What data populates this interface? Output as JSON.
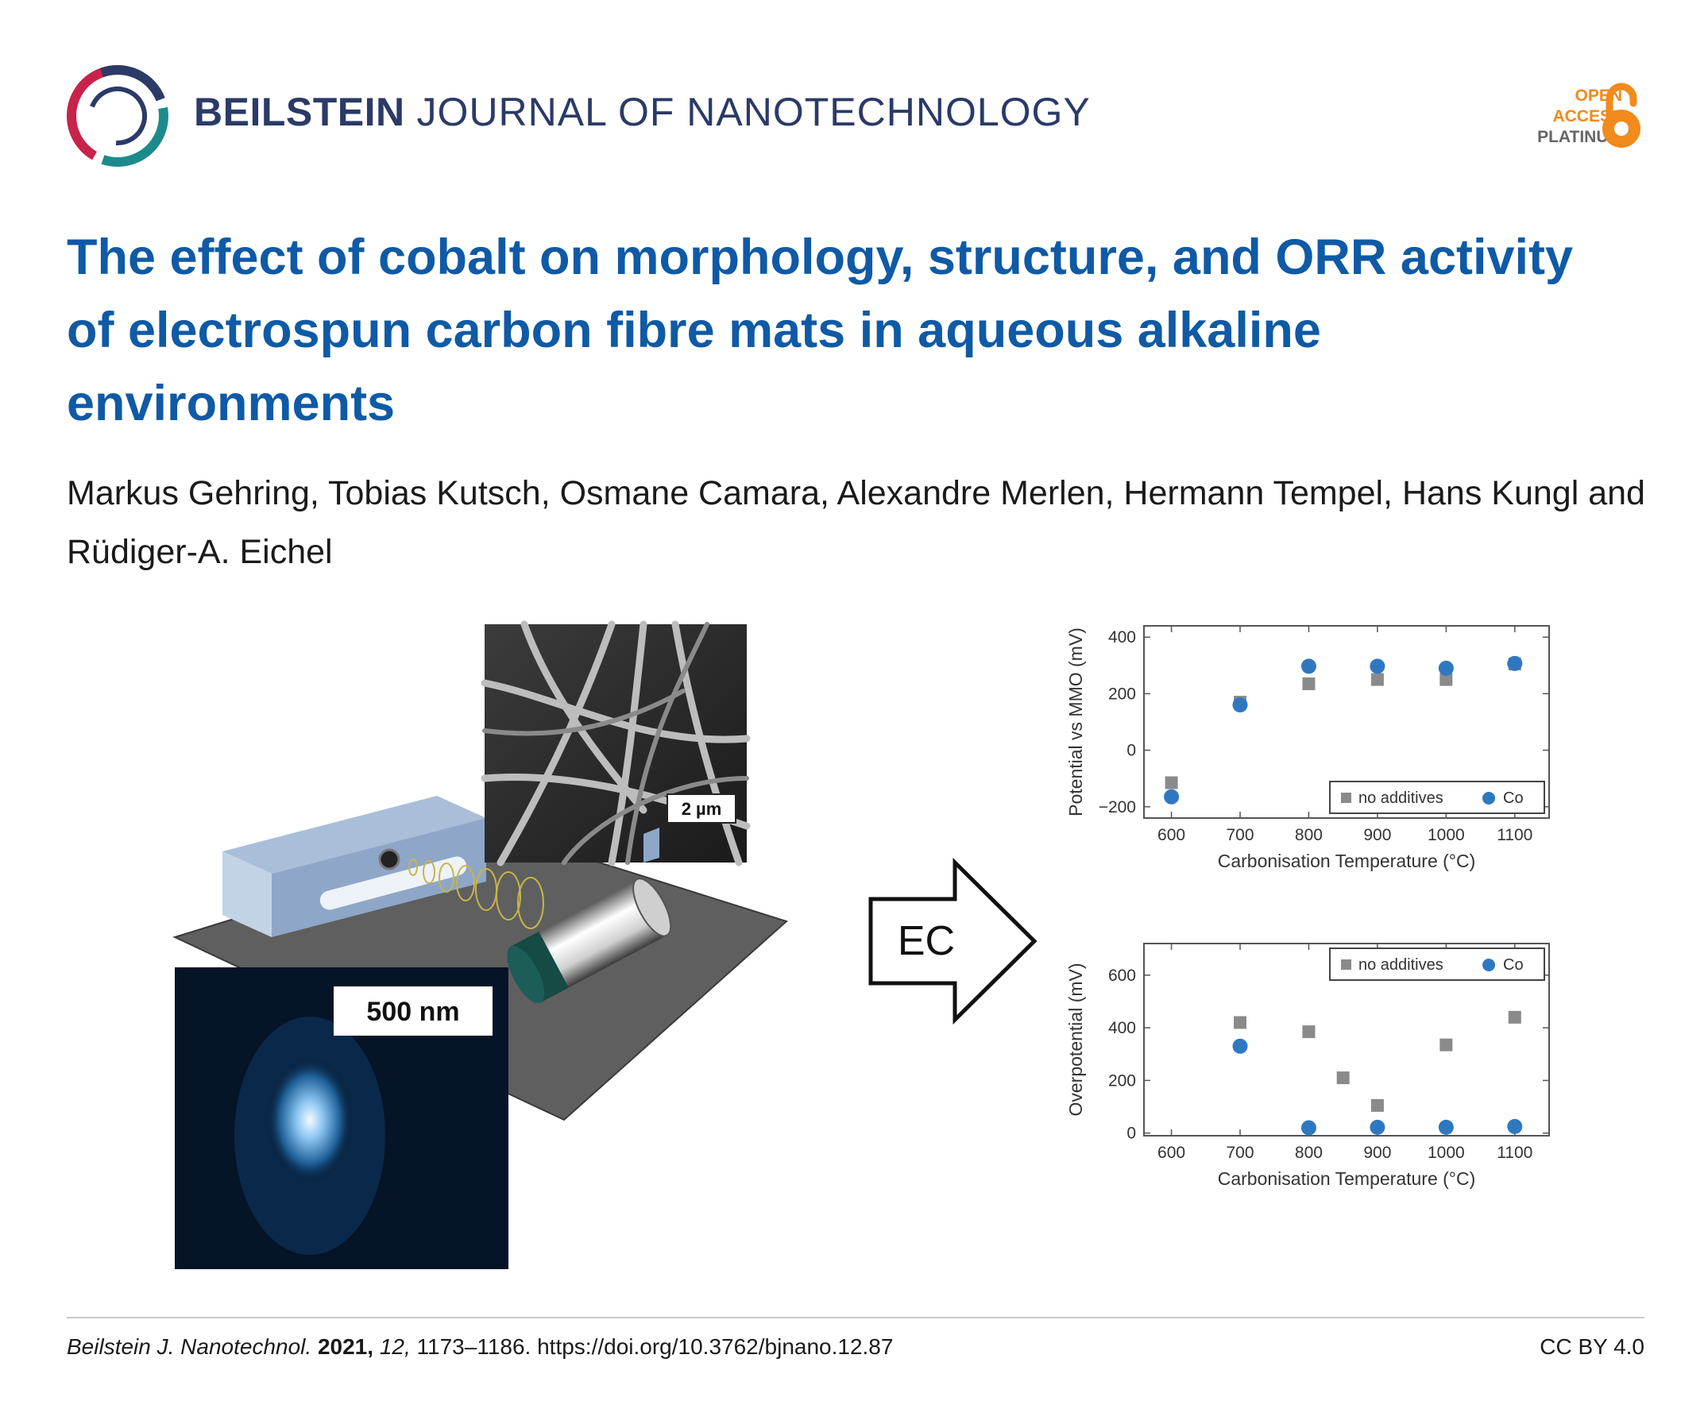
{
  "header": {
    "journal_bold": "BEILSTEIN",
    "journal_rest": "JOURNAL OF NANOTECHNOLOGY",
    "oa_line1": "OPEN",
    "oa_line2": "ACCESS",
    "oa_line3": "PLATINUM"
  },
  "title": "The effect of cobalt on morphology, structure, and ORR activity of electrospun carbon fibre mats in aqueous alkaline environments",
  "authors": "Markus Gehring, Tobias Kutsch, Osmane Camara, Alexandre Merlen, Hermann Tempel, Hans Kungl and Rüdiger-A. Eichel",
  "figure": {
    "scale_bar_sem": "2 µm",
    "scale_bar_tem": "500 nm",
    "arrow_label": "EC"
  },
  "chart_data": [
    {
      "type": "scatter",
      "xlabel": "Carbonisation Temperature (°C)",
      "ylabel": "Potential vs MMO (mV)",
      "xlim": [
        560,
        1150
      ],
      "ylim": [
        -240,
        440
      ],
      "xticks": [
        600,
        700,
        800,
        900,
        1000,
        1100
      ],
      "yticks": [
        -200,
        0,
        200,
        400
      ],
      "ytick_labels": [
        "−200",
        "0",
        "200",
        "400"
      ],
      "legend_position": "bottom-right",
      "series": [
        {
          "name": "no additives",
          "marker": "square",
          "color": "#8a8a8a",
          "x": [
            600,
            700,
            800,
            900,
            1000,
            1100
          ],
          "y": [
            -115,
            170,
            235,
            250,
            250,
            305
          ]
        },
        {
          "name": "Co",
          "marker": "circle",
          "color": "#2f78c0",
          "x": [
            600,
            700,
            800,
            900,
            1000,
            1100
          ],
          "y": [
            -165,
            160,
            297,
            297,
            290,
            307
          ]
        }
      ]
    },
    {
      "type": "scatter",
      "xlabel": "Carbonisation Temperature (°C)",
      "ylabel": "Overpotential (mV)",
      "xlim": [
        560,
        1150
      ],
      "ylim": [
        -10,
        720
      ],
      "xticks": [
        600,
        700,
        800,
        900,
        1000,
        1100
      ],
      "yticks": [
        0,
        200,
        400,
        600
      ],
      "ytick_labels": [
        "0",
        "200",
        "400",
        "600"
      ],
      "legend_position": "top-right",
      "series": [
        {
          "name": "no additives",
          "marker": "square",
          "color": "#8a8a8a",
          "x": [
            700,
            800,
            850,
            900,
            1000,
            1100
          ],
          "y": [
            420,
            385,
            210,
            105,
            335,
            440
          ]
        },
        {
          "name": "Co",
          "marker": "circle",
          "color": "#2f78c0",
          "x": [
            700,
            800,
            900,
            1000,
            1100
          ],
          "y": [
            330,
            20,
            22,
            22,
            25
          ]
        }
      ]
    }
  ],
  "footer": {
    "journal_abbrev": "Beilstein J. Nanotechnol.",
    "year": "2021,",
    "volume": "12,",
    "pages_doi": "1173–1186. https://doi.org/10.3762/bjnano.12.87",
    "license": "CC BY 4.0"
  }
}
